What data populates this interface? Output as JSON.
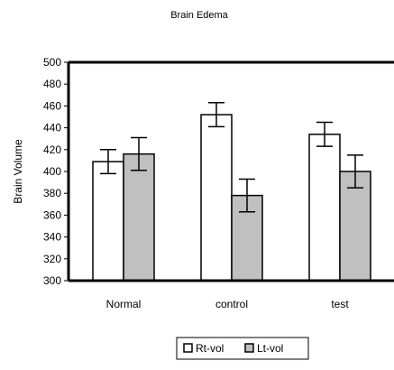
{
  "chart_data": {
    "type": "bar",
    "title": "Brain Edema",
    "xlabel": "",
    "ylabel": "Brain Volume",
    "ylim": [
      300,
      500
    ],
    "yticks": [
      300,
      320,
      340,
      360,
      380,
      400,
      420,
      440,
      460,
      480,
      500
    ],
    "categories": [
      "Normal",
      "control",
      "test"
    ],
    "series": [
      {
        "name": "Rt-vol",
        "values": [
          409,
          452,
          434
        ],
        "errors": [
          11,
          11,
          11
        ],
        "color": "#ffffff"
      },
      {
        "name": "Lt-vol",
        "values": [
          416,
          378,
          400
        ],
        "errors": [
          15,
          15,
          15
        ],
        "color": "#c0c0c0"
      }
    ],
    "legend_position": "bottom",
    "grid": false
  }
}
